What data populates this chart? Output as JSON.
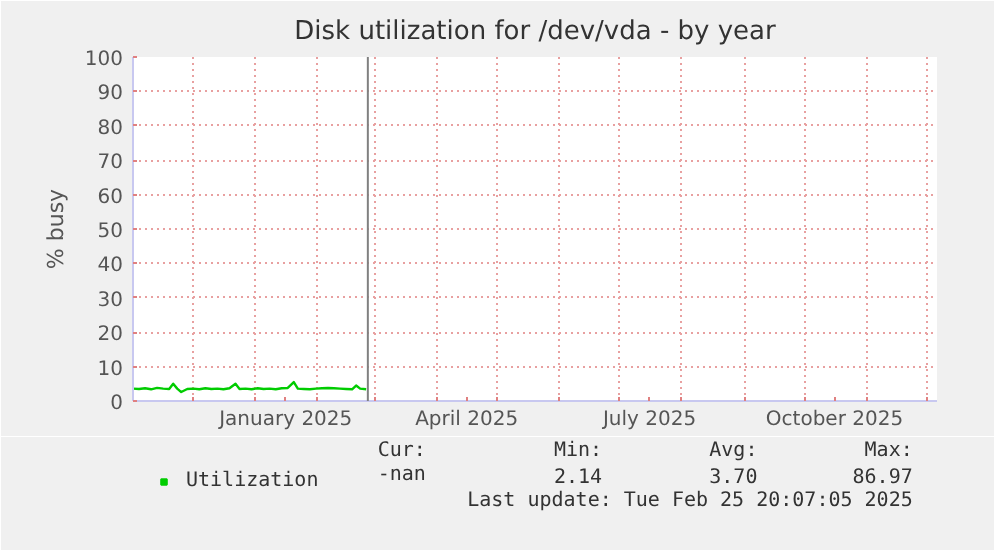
{
  "chart_data": {
    "type": "line",
    "title": "Disk utilization for /dev/vda - by year",
    "ylabel": "% busy",
    "x": [
      "2024-11-01",
      "2024-11-04",
      "2024-11-07",
      "2024-11-10",
      "2024-11-13",
      "2024-11-16",
      "2024-11-19",
      "2024-11-21",
      "2024-11-23",
      "2024-11-25",
      "2024-11-28",
      "2024-12-01",
      "2024-12-04",
      "2024-12-07",
      "2024-12-10",
      "2024-12-13",
      "2024-12-16",
      "2024-12-19",
      "2024-12-22",
      "2024-12-24",
      "2024-12-27",
      "2024-12-30",
      "2025-01-02",
      "2025-01-05",
      "2025-01-08",
      "2025-01-11",
      "2025-01-14",
      "2025-01-17",
      "2025-01-20",
      "2025-01-22",
      "2025-01-25",
      "2025-01-28",
      "2025-01-31",
      "2025-02-03",
      "2025-02-06",
      "2025-02-09",
      "2025-02-12",
      "2025-02-15",
      "2025-02-18",
      "2025-02-20",
      "2025-02-22",
      "2025-02-25"
    ],
    "series": [
      {
        "name": "Utilization",
        "color": "#00cc00",
        "values": [
          3.6,
          3.5,
          3.7,
          3.4,
          3.8,
          3.6,
          3.5,
          5.0,
          3.6,
          2.6,
          3.5,
          3.6,
          3.4,
          3.7,
          3.5,
          3.6,
          3.4,
          3.7,
          5.0,
          3.5,
          3.6,
          3.4,
          3.7,
          3.5,
          3.6,
          3.4,
          3.7,
          3.8,
          5.5,
          3.6,
          3.5,
          3.4,
          3.6,
          3.7,
          3.8,
          3.7,
          3.6,
          3.5,
          3.4,
          4.5,
          3.6,
          3.4
        ]
      }
    ],
    "xlim": [
      "2024-11-01",
      "2025-12-06"
    ],
    "xticks": [
      {
        "value": "2024-12-01",
        "label": null
      },
      {
        "value": "2025-01-01",
        "label": null
      },
      {
        "value": "2025-01-16",
        "label": "January 2025"
      },
      {
        "value": "2025-02-01",
        "label": null
      },
      {
        "value": "2025-03-01",
        "label": null
      },
      {
        "value": "2025-04-01",
        "label": null
      },
      {
        "value": "2025-04-16",
        "label": "April 2025"
      },
      {
        "value": "2025-05-01",
        "label": null
      },
      {
        "value": "2025-06-01",
        "label": null
      },
      {
        "value": "2025-07-01",
        "label": null
      },
      {
        "value": "2025-07-16",
        "label": "July 2025"
      },
      {
        "value": "2025-08-01",
        "label": null
      },
      {
        "value": "2025-09-01",
        "label": null
      },
      {
        "value": "2025-10-01",
        "label": null
      },
      {
        "value": "2025-10-16",
        "label": "October 2025"
      },
      {
        "value": "2025-11-01",
        "label": null
      },
      {
        "value": "2025-12-01",
        "label": null
      }
    ],
    "ylim": [
      0,
      100
    ],
    "yticks": [
      0,
      10,
      20,
      30,
      40,
      50,
      60,
      70,
      80,
      90,
      100
    ],
    "grid": true,
    "legend": "bottom left",
    "marker": "none",
    "line_style": "solid",
    "ref_lines": [
      {
        "axis": "x",
        "value": "2025-02-25T20:07",
        "color": "#808080"
      }
    ],
    "annotations": [
      "Cur:",
      "Min:",
      "Avg:",
      "Max:",
      "-nan",
      "2.14",
      "3.70",
      "86.97",
      "Last update: Tue Feb 25 20:07:05 2025"
    ]
  }
}
